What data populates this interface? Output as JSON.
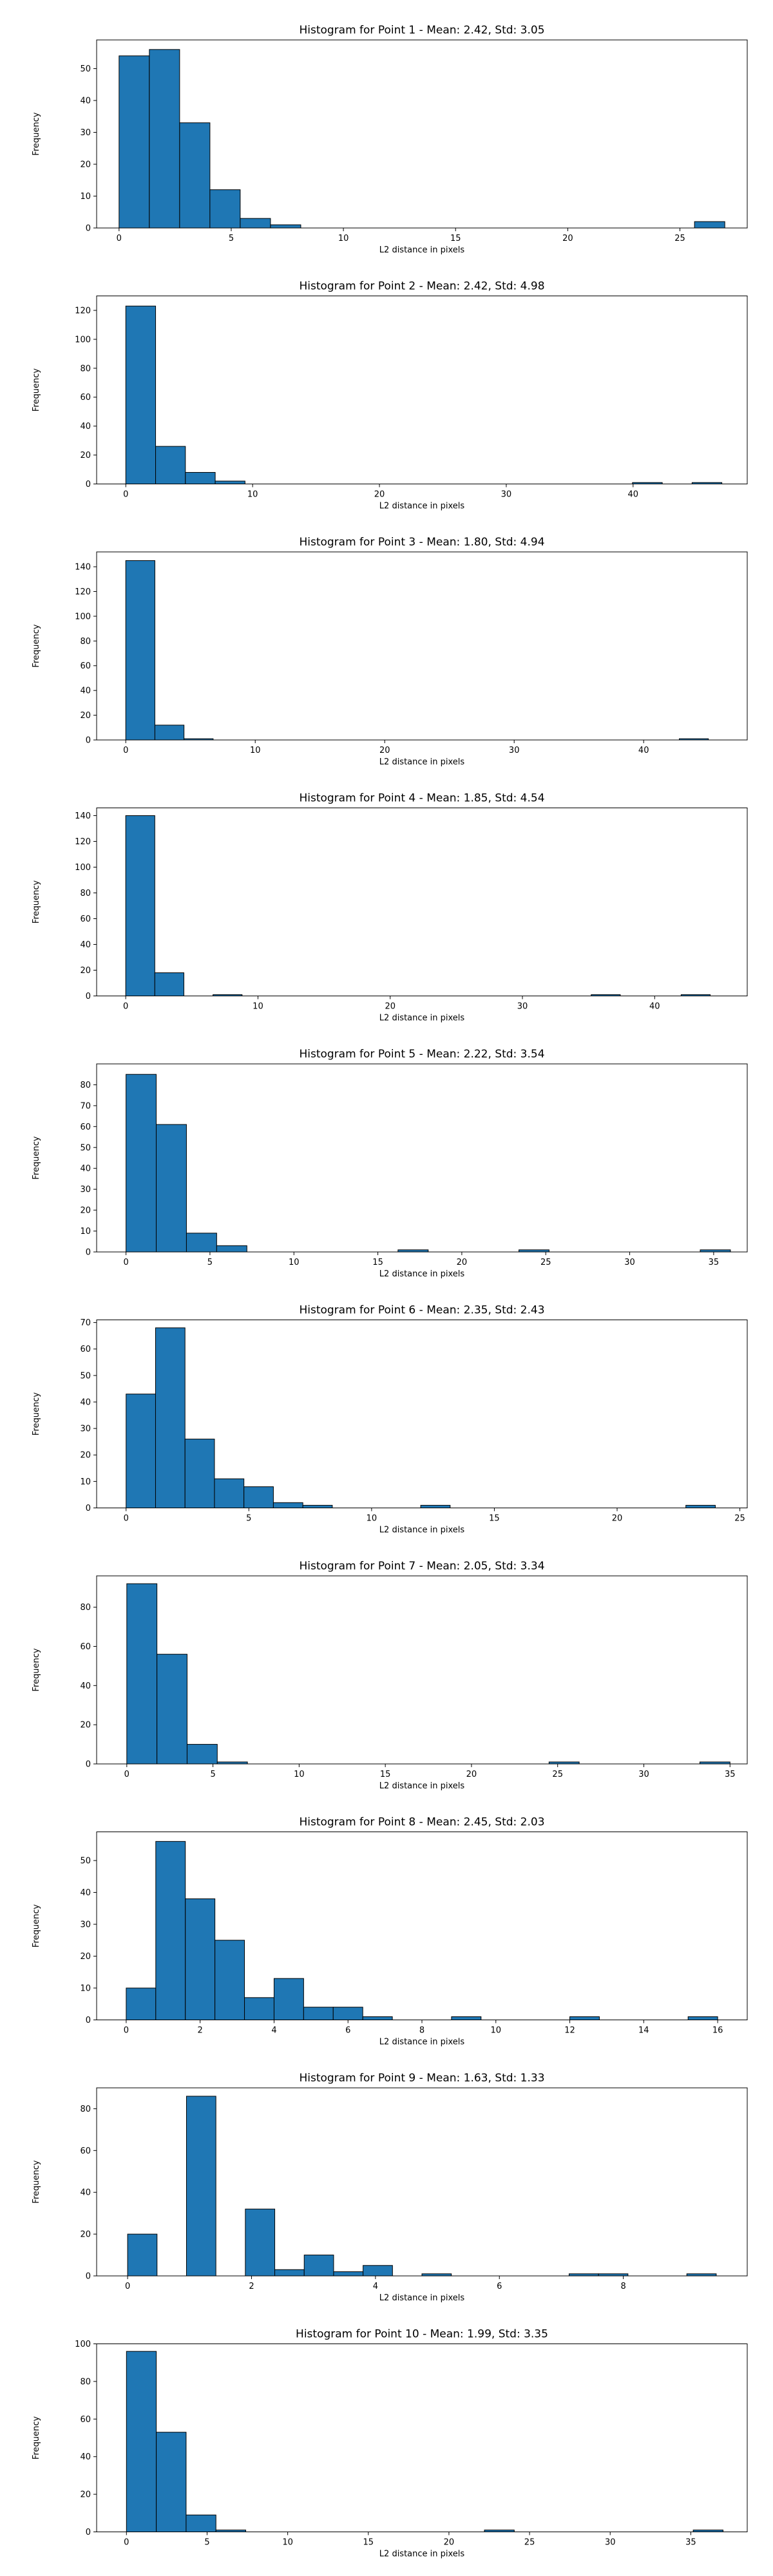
{
  "chart_data": [
    {
      "type": "bar",
      "title": "Histogram for Point 1 - Mean: 2.42, Std: 3.05",
      "xlabel": "L2 distance in pixels",
      "ylabel": "Frequency",
      "xlim": [
        -1.0,
        28.0
      ],
      "ylim": [
        0,
        59
      ],
      "xticks": [
        0,
        5,
        10,
        15,
        20,
        25
      ],
      "yticks": [
        0,
        10,
        20,
        30,
        40,
        50
      ],
      "bins": [
        [
          0.0,
          1.35,
          54
        ],
        [
          1.35,
          2.7,
          56
        ],
        [
          2.7,
          4.05,
          33
        ],
        [
          4.05,
          5.4,
          12
        ],
        [
          5.4,
          6.75,
          3
        ],
        [
          6.75,
          8.1,
          1
        ],
        [
          25.65,
          27.0,
          2
        ]
      ]
    },
    {
      "type": "bar",
      "title": "Histogram for Point 2 - Mean: 2.42, Std: 4.98",
      "xlabel": "L2 distance in pixels",
      "ylabel": "Frequency",
      "xlim": [
        -2.3,
        49.0
      ],
      "ylim": [
        0,
        130
      ],
      "xticks": [
        0,
        10,
        20,
        30,
        40
      ],
      "yticks": [
        0,
        20,
        40,
        60,
        80,
        100,
        120
      ],
      "bins": [
        [
          0.0,
          2.35,
          123
        ],
        [
          2.35,
          4.7,
          26
        ],
        [
          4.7,
          7.05,
          8
        ],
        [
          7.05,
          9.4,
          2
        ],
        [
          39.95,
          42.3,
          1
        ],
        [
          44.65,
          47.0,
          1
        ]
      ]
    },
    {
      "type": "bar",
      "title": "Histogram for Point 3 - Mean: 1.80, Std: 4.94",
      "xlabel": "L2 distance in pixels",
      "ylabel": "Frequency",
      "xlim": [
        -2.25,
        48.0
      ],
      "ylim": [
        0,
        152
      ],
      "xticks": [
        0,
        10,
        20,
        30,
        40
      ],
      "yticks": [
        0,
        20,
        40,
        60,
        80,
        100,
        120,
        140
      ],
      "bins": [
        [
          0.0,
          2.25,
          145
        ],
        [
          2.25,
          4.5,
          12
        ],
        [
          4.5,
          6.75,
          1
        ],
        [
          42.75,
          45.0,
          1
        ]
      ]
    },
    {
      "type": "bar",
      "title": "Histogram for Point 4 - Mean: 1.85, Std: 4.54",
      "xlabel": "L2 distance in pixels",
      "ylabel": "Frequency",
      "xlim": [
        -2.2,
        47.0
      ],
      "ylim": [
        0,
        146
      ],
      "xticks": [
        0,
        10,
        20,
        30,
        40
      ],
      "yticks": [
        0,
        20,
        40,
        60,
        80,
        100,
        120,
        140
      ],
      "bins": [
        [
          0.0,
          2.2,
          140
        ],
        [
          2.2,
          4.4,
          18
        ],
        [
          6.6,
          8.8,
          1
        ],
        [
          35.2,
          37.4,
          1
        ],
        [
          42.0,
          44.2,
          1
        ]
      ]
    },
    {
      "type": "bar",
      "title": "Histogram for Point 5 - Mean: 2.22, Std: 3.54",
      "xlabel": "L2 distance in pixels",
      "ylabel": "Frequency",
      "xlim": [
        -1.75,
        37.0
      ],
      "ylim": [
        0,
        90
      ],
      "xticks": [
        0,
        5,
        10,
        15,
        20,
        25,
        30,
        35
      ],
      "yticks": [
        0,
        10,
        20,
        30,
        40,
        50,
        60,
        70,
        80
      ],
      "bins": [
        [
          0.0,
          1.8,
          85
        ],
        [
          1.8,
          3.6,
          61
        ],
        [
          3.6,
          5.4,
          9
        ],
        [
          5.4,
          7.2,
          3
        ],
        [
          16.2,
          18.0,
          1
        ],
        [
          23.4,
          25.2,
          1
        ],
        [
          34.2,
          36.0,
          1
        ]
      ]
    },
    {
      "type": "bar",
      "title": "Histogram for Point 6 - Mean: 2.35, Std: 2.43",
      "xlabel": "L2 distance in pixels",
      "ylabel": "Frequency",
      "xlim": [
        -1.2,
        25.3
      ],
      "ylim": [
        0,
        71
      ],
      "xticks": [
        0,
        5,
        10,
        15,
        20,
        25
      ],
      "yticks": [
        0,
        10,
        20,
        30,
        40,
        50,
        60,
        70
      ],
      "bins": [
        [
          0.0,
          1.2,
          43
        ],
        [
          1.2,
          2.4,
          68
        ],
        [
          2.4,
          3.6,
          26
        ],
        [
          3.6,
          4.8,
          11
        ],
        [
          4.8,
          6.0,
          8
        ],
        [
          6.0,
          7.2,
          2
        ],
        [
          7.2,
          8.4,
          1
        ],
        [
          12.0,
          13.2,
          1
        ],
        [
          22.8,
          24.0,
          1
        ]
      ]
    },
    {
      "type": "bar",
      "title": "Histogram for Point 7 - Mean: 2.05, Std: 3.34",
      "xlabel": "L2 distance in pixels",
      "ylabel": "Frequency",
      "xlim": [
        -1.75,
        36.0
      ],
      "ylim": [
        0,
        96
      ],
      "xticks": [
        0,
        5,
        10,
        15,
        20,
        25,
        30,
        35
      ],
      "yticks": [
        0,
        20,
        40,
        60,
        80
      ],
      "bins": [
        [
          0.0,
          1.75,
          92
        ],
        [
          1.75,
          3.5,
          56
        ],
        [
          3.5,
          5.25,
          10
        ],
        [
          5.25,
          7.0,
          1
        ],
        [
          24.5,
          26.25,
          1
        ],
        [
          33.25,
          35.0,
          1
        ]
      ]
    },
    {
      "type": "bar",
      "title": "Histogram for Point 8 - Mean: 2.45, Std: 2.03",
      "xlabel": "L2 distance in pixels",
      "ylabel": "Frequency",
      "xlim": [
        -0.8,
        16.8
      ],
      "ylim": [
        0,
        59
      ],
      "xticks": [
        0,
        2,
        4,
        6,
        8,
        10,
        12,
        14,
        16
      ],
      "yticks": [
        0,
        10,
        20,
        30,
        40,
        50
      ],
      "bins": [
        [
          0.0,
          0.8,
          10
        ],
        [
          0.8,
          1.6,
          56
        ],
        [
          1.6,
          2.4,
          38
        ],
        [
          2.4,
          3.2,
          25
        ],
        [
          3.2,
          4.0,
          7
        ],
        [
          4.0,
          4.8,
          13
        ],
        [
          4.8,
          5.6,
          4
        ],
        [
          5.6,
          6.4,
          4
        ],
        [
          6.4,
          7.2,
          1
        ],
        [
          8.8,
          9.6,
          1
        ],
        [
          12.0,
          12.8,
          1
        ],
        [
          15.2,
          16.0,
          1
        ]
      ]
    },
    {
      "type": "bar",
      "title": "Histogram for Point 9 - Mean: 1.63, Std: 1.33",
      "xlabel": "L2 distance in pixels",
      "ylabel": "Frequency",
      "xlim": [
        -0.5,
        10.0
      ],
      "ylim": [
        0,
        90
      ],
      "xticks": [
        0,
        2,
        4,
        6,
        8
      ],
      "yticks": [
        0,
        20,
        40,
        60,
        80
      ],
      "bins": [
        [
          0.0,
          0.475,
          20
        ],
        [
          0.95,
          1.425,
          86
        ],
        [
          1.9,
          2.375,
          32
        ],
        [
          2.375,
          2.85,
          3
        ],
        [
          2.85,
          3.325,
          10
        ],
        [
          3.325,
          3.8,
          2
        ],
        [
          3.8,
          4.275,
          5
        ],
        [
          4.75,
          5.225,
          1
        ],
        [
          7.125,
          7.6,
          1
        ],
        [
          7.6,
          8.075,
          1
        ],
        [
          9.025,
          9.5,
          1
        ]
      ]
    },
    {
      "type": "bar",
      "title": "Histogram for Point 10 - Mean: 1.99, Std: 3.35",
      "xlabel": "L2 distance in pixels",
      "ylabel": "Frequency",
      "xlim": [
        -1.85,
        38.5
      ],
      "ylim": [
        0,
        100
      ],
      "xticks": [
        0,
        5,
        10,
        15,
        20,
        25,
        30,
        35
      ],
      "yticks": [
        0,
        20,
        40,
        60,
        80,
        100
      ],
      "bins": [
        [
          0.0,
          1.85,
          96
        ],
        [
          1.85,
          3.7,
          53
        ],
        [
          3.7,
          5.55,
          9
        ],
        [
          5.55,
          7.4,
          1
        ],
        [
          22.2,
          24.05,
          1
        ],
        [
          35.15,
          37.0,
          1
        ]
      ]
    }
  ]
}
